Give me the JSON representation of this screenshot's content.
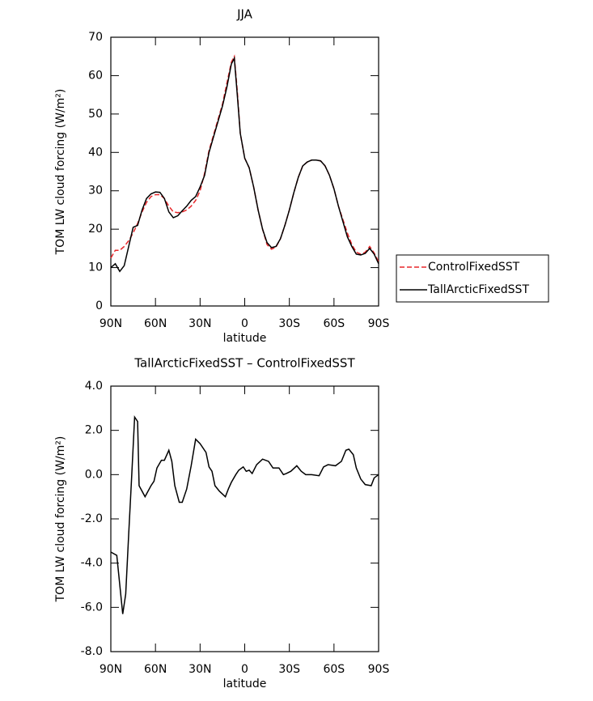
{
  "chart_data": [
    {
      "type": "line",
      "title": "JJA",
      "xlabel": "latitude",
      "ylabel": "TOM LW cloud forcing (W/m²)",
      "x": [
        90,
        87,
        84,
        81,
        78,
        75,
        72,
        69,
        66,
        63,
        60,
        57,
        54,
        51,
        48,
        45,
        42,
        39,
        36,
        33,
        30,
        27,
        24,
        21,
        18,
        15,
        12,
        9,
        7,
        5,
        3,
        0,
        -3,
        -6,
        -9,
        -12,
        -15,
        -18,
        -21,
        -24,
        -27,
        -30,
        -33,
        -36,
        -39,
        -42,
        -45,
        -48,
        -51,
        -54,
        -57,
        -60,
        -63,
        -66,
        -69,
        -72,
        -75,
        -78,
        -81,
        -84,
        -87,
        -90
      ],
      "series": [
        {
          "name": "ControlFixedSST",
          "color": "#e8262a",
          "linestyle": "dashed",
          "values": [
            12.5,
            14.5,
            14.5,
            15.5,
            17,
            19,
            21.5,
            24.5,
            27,
            28.5,
            29,
            29,
            28,
            26,
            24.5,
            24.3,
            24.5,
            25,
            26,
            27.5,
            30,
            34.5,
            40.5,
            44.5,
            48.5,
            52.5,
            58,
            63.5,
            65,
            56,
            45,
            38.5,
            36,
            31,
            25,
            20,
            16,
            14.8,
            15.3,
            17.5,
            21,
            25,
            29.5,
            33.5,
            36.5,
            37.5,
            38,
            38,
            37.8,
            36.5,
            34,
            30.5,
            26,
            22.5,
            19,
            16,
            14,
            13.5,
            14,
            15.5,
            13.8,
            11.5
          ]
        },
        {
          "name": "TallArcticFixedSST",
          "color": "#000000",
          "linestyle": "solid",
          "values": [
            10,
            11,
            9,
            10.5,
            15.5,
            20.5,
            21,
            25,
            28,
            29.2,
            29.7,
            29.6,
            28,
            24.5,
            23,
            23.5,
            24.8,
            26,
            27.5,
            28.5,
            31,
            34,
            40,
            44,
            48,
            52,
            57,
            63,
            64.5,
            55,
            45,
            38.5,
            36,
            31,
            25,
            20,
            16.5,
            15.2,
            15.5,
            17.5,
            21,
            25,
            29.5,
            33.5,
            36.5,
            37.5,
            38,
            38,
            37.8,
            36.5,
            34,
            30.5,
            26,
            22,
            18,
            15.5,
            13.5,
            13.3,
            13.7,
            15,
            13.5,
            11
          ]
        }
      ],
      "xlim": [
        90,
        -90
      ],
      "xticks": [
        {
          "value": 90,
          "label": "90N"
        },
        {
          "value": 60,
          "label": "60N"
        },
        {
          "value": 30,
          "label": "30N"
        },
        0,
        {
          "value": -30,
          "label": "30S"
        },
        {
          "value": -60,
          "label": "60S"
        },
        {
          "value": -90,
          "label": "90S"
        }
      ],
      "ylim": [
        0,
        70
      ],
      "yticks": [
        0,
        10,
        20,
        30,
        40,
        50,
        60,
        70
      ],
      "legend": "right"
    },
    {
      "type": "line",
      "title": "TallArcticFixedSST – ControlFixedSST",
      "xlabel": "latitude",
      "ylabel": "TOM LW cloud forcing (W/m²)",
      "x": [
        90,
        86,
        82,
        80,
        78,
        76,
        74,
        72,
        71,
        67,
        63,
        61,
        59,
        56,
        54,
        51,
        49,
        47,
        44,
        42,
        39,
        36,
        33,
        30,
        26,
        24,
        22,
        20,
        17,
        13,
        11,
        9,
        6,
        4,
        1,
        -1,
        -3,
        -5,
        -8,
        -12,
        -16,
        -19,
        -23,
        -26,
        -28,
        -31,
        -35,
        -38,
        -41,
        -45,
        -50,
        -53,
        -56,
        -61,
        -65,
        -68,
        -70,
        -73,
        -75,
        -78,
        -81,
        -85,
        -87,
        -90
      ],
      "series": [
        {
          "color": "#000000",
          "linestyle": "solid",
          "values": [
            -3.5,
            -3.65,
            -6.3,
            -5.4,
            -2.7,
            -0.1,
            2.6,
            2.4,
            -0.5,
            -1.0,
            -0.5,
            -0.3,
            0.3,
            0.65,
            0.65,
            1.1,
            0.6,
            -0.5,
            -1.25,
            -1.25,
            -0.65,
            0.4,
            1.6,
            1.4,
            1.0,
            0.35,
            0.15,
            -0.5,
            -0.75,
            -1.0,
            -0.65,
            -0.35,
            0,
            0.2,
            0.35,
            0.15,
            0.2,
            0.05,
            0.45,
            0.7,
            0.6,
            0.3,
            0.3,
            0,
            0.05,
            0.15,
            0.4,
            0.15,
            0,
            0,
            -0.05,
            0.35,
            0.45,
            0.4,
            0.6,
            1.1,
            1.15,
            0.9,
            0.3,
            -0.2,
            -0.45,
            -0.5,
            -0.15,
            0
          ]
        }
      ],
      "xlim": [
        90,
        -90
      ],
      "xticks": [
        {
          "value": 90,
          "label": "90N"
        },
        {
          "value": 60,
          "label": "60N"
        },
        {
          "value": 30,
          "label": "30N"
        },
        0,
        {
          "value": -30,
          "label": "30S"
        },
        {
          "value": -60,
          "label": "60S"
        },
        {
          "value": -90,
          "label": "90S"
        }
      ],
      "ylim": [
        -8,
        4
      ],
      "yticks": [
        {
          "value": -8,
          "label": "-8.0"
        },
        {
          "value": -6,
          "label": "-6.0"
        },
        {
          "value": -4,
          "label": "-4.0"
        },
        {
          "value": -2,
          "label": "-2.0"
        },
        {
          "value": 0,
          "label": "0.0"
        },
        {
          "value": 2,
          "label": "2.0"
        },
        {
          "value": 4,
          "label": "4.0"
        }
      ]
    }
  ]
}
